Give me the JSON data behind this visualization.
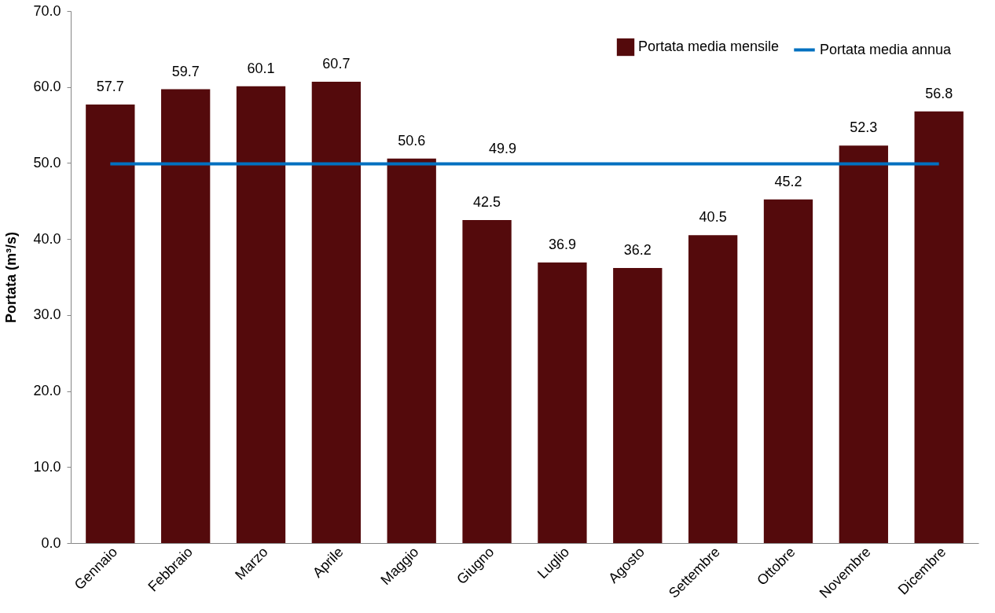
{
  "chart_data": {
    "type": "bar",
    "ylabel": "Portata  (m³/s)",
    "categories": [
      "Gennaio",
      "Febbraio",
      "Marzo",
      "Aprile",
      "Maggio",
      "Giugno",
      "Luglio",
      "Agosto",
      "Settembre",
      "Ottobre",
      "Novembre",
      "Dicembre"
    ],
    "series": [
      {
        "name": "Portata media mensile",
        "color": "#540a0c",
        "values": [
          57.7,
          59.7,
          60.1,
          60.7,
          50.6,
          42.5,
          36.9,
          36.2,
          40.5,
          45.2,
          52.3,
          56.8
        ]
      },
      {
        "name": "Portata media annua",
        "type": "line",
        "color": "#0070c0",
        "values": [
          49.9,
          49.9,
          49.9,
          49.9,
          49.9,
          49.9,
          49.9,
          49.9,
          49.9,
          49.9,
          49.9,
          49.9
        ],
        "value_labels": [
          null,
          null,
          null,
          null,
          null,
          "49.9",
          null,
          null,
          null,
          null,
          null,
          null
        ]
      }
    ],
    "data_labels": true,
    "ylim": [
      0,
      70
    ],
    "yticks": [
      {
        "value": 0,
        "label": "0.0"
      },
      {
        "value": 10,
        "label": "10.0"
      },
      {
        "value": 20,
        "label": "20.0"
      },
      {
        "value": 30,
        "label": "30.0"
      },
      {
        "value": 40,
        "label": "40.0"
      },
      {
        "value": 50,
        "label": "50.0"
      },
      {
        "value": 60,
        "label": "60.0"
      },
      {
        "value": 70,
        "label": "70.0"
      }
    ],
    "grid": false,
    "legend": "top right",
    "marker": "none",
    "line_style": "solid"
  }
}
